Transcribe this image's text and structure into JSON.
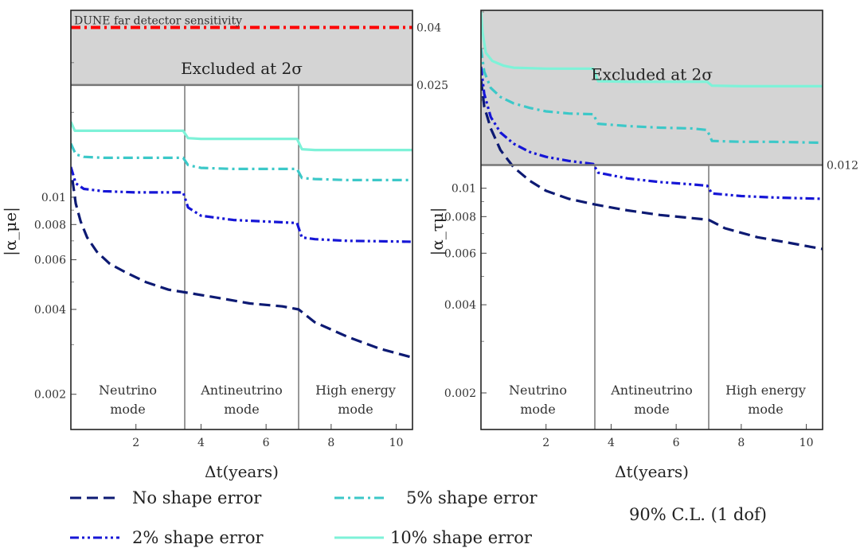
{
  "chart_data": [
    {
      "type": "line",
      "ylabel": "|α_μe|",
      "xlabel": "Δt(years)",
      "xlim": [
        0,
        10.5
      ],
      "ylim": [
        0.0015,
        0.046
      ],
      "y_scale": "log",
      "x_ticks": [
        2,
        4,
        6,
        8,
        10
      ],
      "y_ticks": [
        {
          "value": 0.002,
          "label": "0.002"
        },
        {
          "value": 0.004,
          "label": "0.004"
        },
        {
          "value": 0.006,
          "label": "0.006"
        },
        {
          "value": 0.008,
          "label": "0.008"
        },
        {
          "value": 0.01,
          "label": "0.01"
        }
      ],
      "excluded_region": {
        "from": 0.025,
        "label": "Excluded at 2σ",
        "threshold_label": "0.025"
      },
      "reference_line": {
        "value": 0.04,
        "label": "DUNE far detector sensitivity",
        "value_label": "0.04",
        "color": "#ff0000"
      },
      "mode_dividers": [
        3.5,
        7.0
      ],
      "modes": [
        {
          "line1": "Neutrino",
          "line2": "mode",
          "x": 1.75
        },
        {
          "line1": "Antineutrino",
          "line2": "mode",
          "x": 5.25
        },
        {
          "line1": "High energy",
          "line2": "mode",
          "x": 8.75
        }
      ],
      "series": [
        {
          "name": "No shape error",
          "style": "dashed",
          "color": "#0d1a73",
          "x": [
            0.05,
            0.15,
            0.3,
            0.5,
            0.8,
            1.2,
            1.7,
            2.3,
            3.0,
            3.5,
            4.5,
            5.5,
            6.5,
            7.0,
            7.5,
            8.5,
            9.5,
            10.5
          ],
          "y": [
            0.0115,
            0.0095,
            0.0082,
            0.0072,
            0.0064,
            0.0058,
            0.0054,
            0.005,
            0.0047,
            0.0046,
            0.0044,
            0.0042,
            0.0041,
            0.004,
            0.0036,
            0.0032,
            0.0029,
            0.0027
          ]
        },
        {
          "name": "2% shape error",
          "style": "dashdotdot",
          "color": "#1616d6",
          "x": [
            0.0,
            0.15,
            0.4,
            1.0,
            2.0,
            3.0,
            3.45,
            3.6,
            4.0,
            5.0,
            6.0,
            6.95,
            7.1,
            7.5,
            8.5,
            9.5,
            10.5
          ],
          "y": [
            0.0128,
            0.0112,
            0.0107,
            0.0105,
            0.0104,
            0.0104,
            0.0104,
            0.0092,
            0.0086,
            0.0083,
            0.0082,
            0.0081,
            0.0072,
            0.0071,
            0.007,
            0.00698,
            0.00695
          ]
        },
        {
          "name": "5% shape error",
          "style": "dashdot",
          "color": "#3cc8c8",
          "x": [
            0.0,
            0.15,
            0.4,
            1.0,
            2.0,
            3.0,
            3.45,
            3.6,
            4.0,
            5.0,
            6.0,
            6.95,
            7.1,
            7.5,
            8.5,
            9.5,
            10.5
          ],
          "y": [
            0.0155,
            0.0142,
            0.0139,
            0.0138,
            0.0138,
            0.0138,
            0.0138,
            0.013,
            0.0127,
            0.0126,
            0.0126,
            0.0126,
            0.0117,
            0.0116,
            0.0115,
            0.0115,
            0.0115
          ]
        },
        {
          "name": "10% shape error",
          "style": "solid",
          "color": "#7ef2d8",
          "x": [
            0.0,
            0.12,
            0.4,
            1.0,
            2.0,
            3.0,
            3.45,
            3.6,
            4.0,
            5.0,
            6.0,
            6.95,
            7.1,
            7.5,
            8.5,
            9.5,
            10.5
          ],
          "y": [
            0.0185,
            0.0172,
            0.0172,
            0.0172,
            0.0172,
            0.0172,
            0.0172,
            0.0162,
            0.0161,
            0.0161,
            0.0161,
            0.0161,
            0.0148,
            0.0147,
            0.0147,
            0.0147,
            0.0147
          ]
        }
      ]
    },
    {
      "type": "line",
      "ylabel": "|α_τμ|",
      "xlabel": "Δt(years)",
      "xlim": [
        0,
        10.5
      ],
      "ylim": [
        0.0015,
        0.0405
      ],
      "y_scale": "log",
      "x_ticks": [
        2,
        4,
        6,
        8,
        10
      ],
      "y_ticks": [
        {
          "value": 0.002,
          "label": "0.002"
        },
        {
          "value": 0.004,
          "label": "0.004"
        },
        {
          "value": 0.006,
          "label": "0.006"
        },
        {
          "value": 0.008,
          "label": "0.008"
        },
        {
          "value": 0.01,
          "label": "0.01"
        }
      ],
      "excluded_region": {
        "from": 0.012,
        "label": "Excluded at 2σ",
        "threshold_label": "0.012"
      },
      "mode_dividers": [
        3.5,
        7.0
      ],
      "modes": [
        {
          "line1": "Neutrino",
          "line2": "mode",
          "x": 1.75
        },
        {
          "line1": "Antineutrino",
          "line2": "mode",
          "x": 5.25
        },
        {
          "line1": "High energy",
          "line2": "mode",
          "x": 8.75
        }
      ],
      "series": [
        {
          "name": "No shape error",
          "style": "dashed",
          "color": "#0d1a73",
          "x": [
            0.0,
            0.1,
            0.3,
            0.6,
            1.0,
            1.5,
            2.0,
            2.7,
            3.5,
            4.5,
            5.5,
            6.5,
            7.0,
            7.5,
            8.5,
            9.5,
            10.5
          ],
          "y": [
            0.0235,
            0.019,
            0.016,
            0.0135,
            0.0118,
            0.0106,
            0.0098,
            0.0092,
            0.0088,
            0.0084,
            0.0081,
            0.0079,
            0.0078,
            0.0073,
            0.0068,
            0.0065,
            0.0062
          ]
        },
        {
          "name": "2% shape error",
          "style": "dashdotdot",
          "color": "#1616d6",
          "x": [
            0.0,
            0.1,
            0.3,
            0.6,
            1.0,
            1.5,
            2.0,
            2.7,
            3.45,
            3.6,
            4.5,
            5.5,
            6.5,
            6.95,
            7.1,
            8.0,
            9.0,
            10.5
          ],
          "y": [
            0.026,
            0.021,
            0.0175,
            0.0155,
            0.0142,
            0.0133,
            0.0128,
            0.0124,
            0.0121,
            0.0113,
            0.0108,
            0.0105,
            0.0103,
            0.0102,
            0.0096,
            0.0094,
            0.0093,
            0.0092
          ]
        },
        {
          "name": "5% shape error",
          "style": "dashdot",
          "color": "#3cc8c8",
          "x": [
            0.0,
            0.1,
            0.3,
            0.6,
            1.0,
            1.5,
            2.0,
            2.7,
            3.45,
            3.6,
            4.5,
            5.5,
            6.5,
            6.95,
            7.1,
            8.0,
            9.0,
            10.5
          ],
          "y": [
            0.03,
            0.025,
            0.022,
            0.0205,
            0.0195,
            0.0188,
            0.0183,
            0.018,
            0.0179,
            0.0166,
            0.0163,
            0.0161,
            0.016,
            0.0158,
            0.0145,
            0.0144,
            0.0144,
            0.0143
          ]
        },
        {
          "name": "10% shape error",
          "style": "solid",
          "color": "#7ef2d8",
          "x": [
            0.0,
            0.05,
            0.15,
            0.35,
            0.7,
            1.0,
            2.0,
            3.45,
            3.6,
            4.5,
            5.5,
            6.95,
            7.1,
            8.0,
            9.0,
            10.5
          ],
          "y": [
            0.04,
            0.034,
            0.029,
            0.0272,
            0.0262,
            0.0258,
            0.0256,
            0.0256,
            0.0232,
            0.0231,
            0.0231,
            0.0231,
            0.0224,
            0.0223,
            0.0223,
            0.0223
          ]
        }
      ]
    }
  ],
  "legend": {
    "items": [
      {
        "label": "No shape error",
        "style": "dashed",
        "color": "#0d1a73"
      },
      {
        "label": "2% shape error",
        "style": "dashdotdot",
        "color": "#1616d6"
      },
      {
        "label": "5% shape error",
        "style": "dashdot",
        "color": "#3cc8c8"
      },
      {
        "label": "10% shape error",
        "style": "solid",
        "color": "#7ef2d8"
      }
    ],
    "note": "90% C.L. (1 dof)"
  }
}
